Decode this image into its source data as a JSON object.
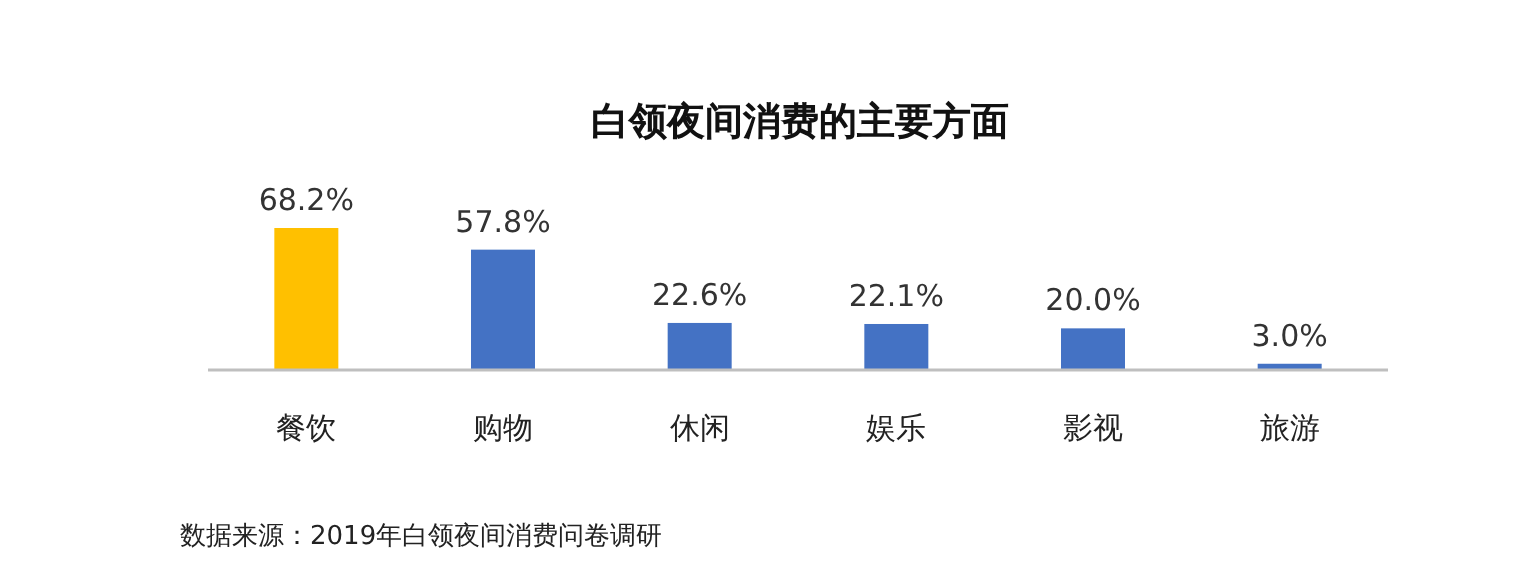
{
  "chart_data": {
    "type": "bar",
    "title": "白领夜间消费的主要方面",
    "categories": [
      "餐饮",
      "购物",
      "休闲",
      "娱乐",
      "影视",
      "旅游"
    ],
    "values": [
      68.2,
      57.8,
      22.6,
      22.1,
      20.0,
      3.0
    ],
    "value_labels": [
      "68.2%",
      "57.8%",
      "22.6%",
      "22.1%",
      "20.0%",
      "3.0%"
    ],
    "colors": [
      "#ffc000",
      "#4472c4",
      "#4472c4",
      "#4472c4",
      "#4472c4",
      "#4472c4"
    ],
    "annotations": [
      "数据来源：2019年白领夜间消费问卷调研"
    ]
  }
}
